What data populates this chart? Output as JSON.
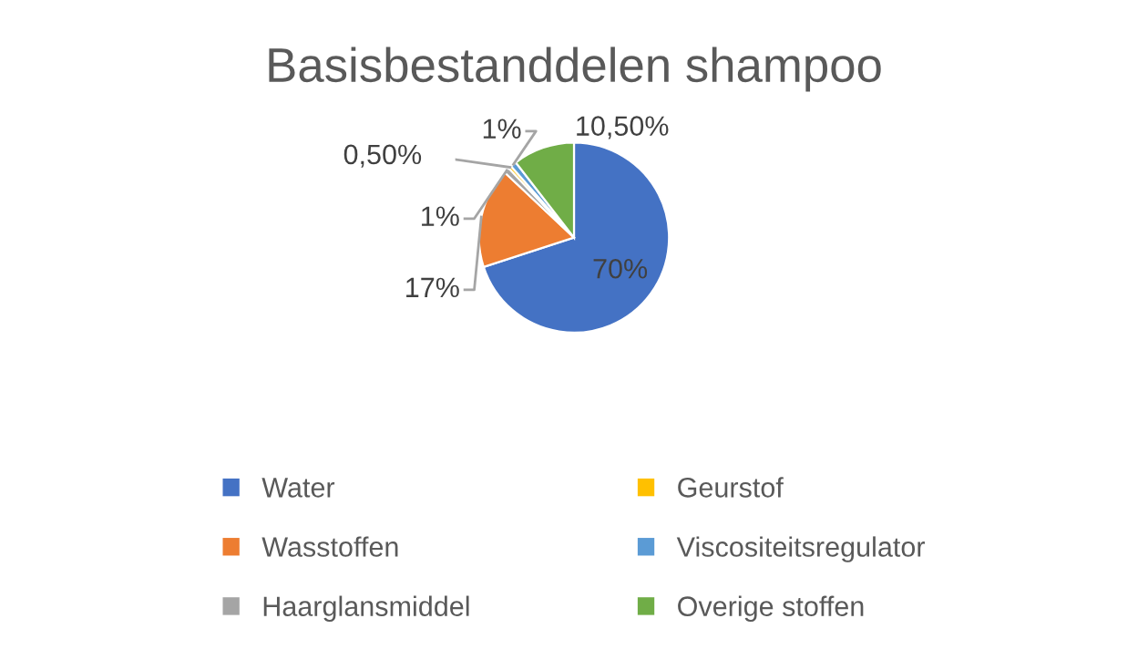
{
  "chart_data": {
    "type": "pie",
    "title": "Basisbestanddelen shampoo",
    "categories": [
      "Water",
      "Wasstoffen",
      "Haarglansmiddel",
      "Geurstof",
      "Viscositeitsregulator",
      "Overige stoffen"
    ],
    "values": [
      70,
      17,
      1,
      0.5,
      1,
      10.5
    ],
    "colors": [
      "#4472c4",
      "#ed7d31",
      "#a5a5a5",
      "#ffc000",
      "#5b9bd5",
      "#70ad47"
    ],
    "value_labels": [
      "70%",
      "17%",
      "1%",
      "0,50%",
      "1%",
      "10,50%"
    ],
    "legend": "bottom"
  }
}
